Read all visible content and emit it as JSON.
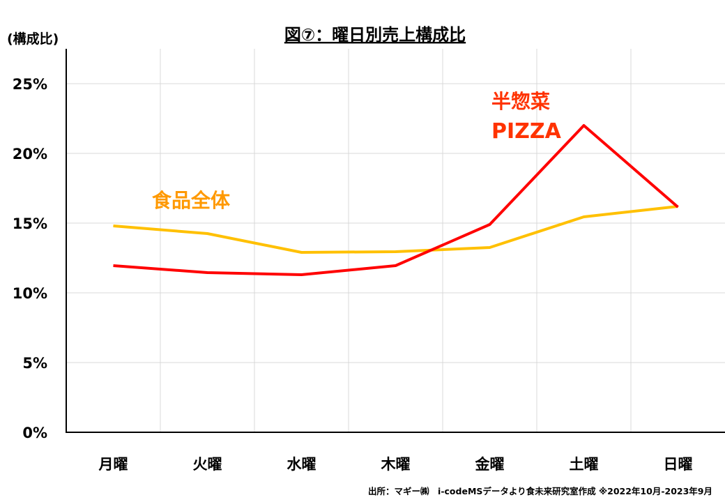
{
  "chart_data": {
    "type": "line",
    "title": "図⑦：曜日別売上構成比",
    "ylabel": "(構成比)",
    "xlabel": "",
    "categories": [
      "月曜",
      "火曜",
      "水曜",
      "木曜",
      "金曜",
      "土曜",
      "日曜"
    ],
    "ylim": [
      0,
      25
    ],
    "yticks": [
      0,
      5,
      10,
      15,
      20,
      25
    ],
    "ytick_labels": [
      "0%",
      "5%",
      "10%",
      "15%",
      "20%",
      "25%"
    ],
    "grid": true,
    "series": [
      {
        "name": "食品全体",
        "color": "#FFC000",
        "label_color": "#FF9900",
        "values": [
          14.8,
          14.25,
          12.9,
          12.95,
          13.25,
          15.45,
          16.2
        ]
      },
      {
        "name": "半惣菜 PIZZA",
        "label_lines": [
          "半惣菜",
          "PIZZA"
        ],
        "color": "#FF0000",
        "label_color": "#FF3300",
        "values": [
          11.95,
          11.45,
          11.3,
          11.95,
          14.9,
          22.0,
          16.15
        ]
      }
    ],
    "source": "出所：マギー㈱　i-codeMSデータより食未来研究室作成 ※2022年10月-2023年9月"
  }
}
